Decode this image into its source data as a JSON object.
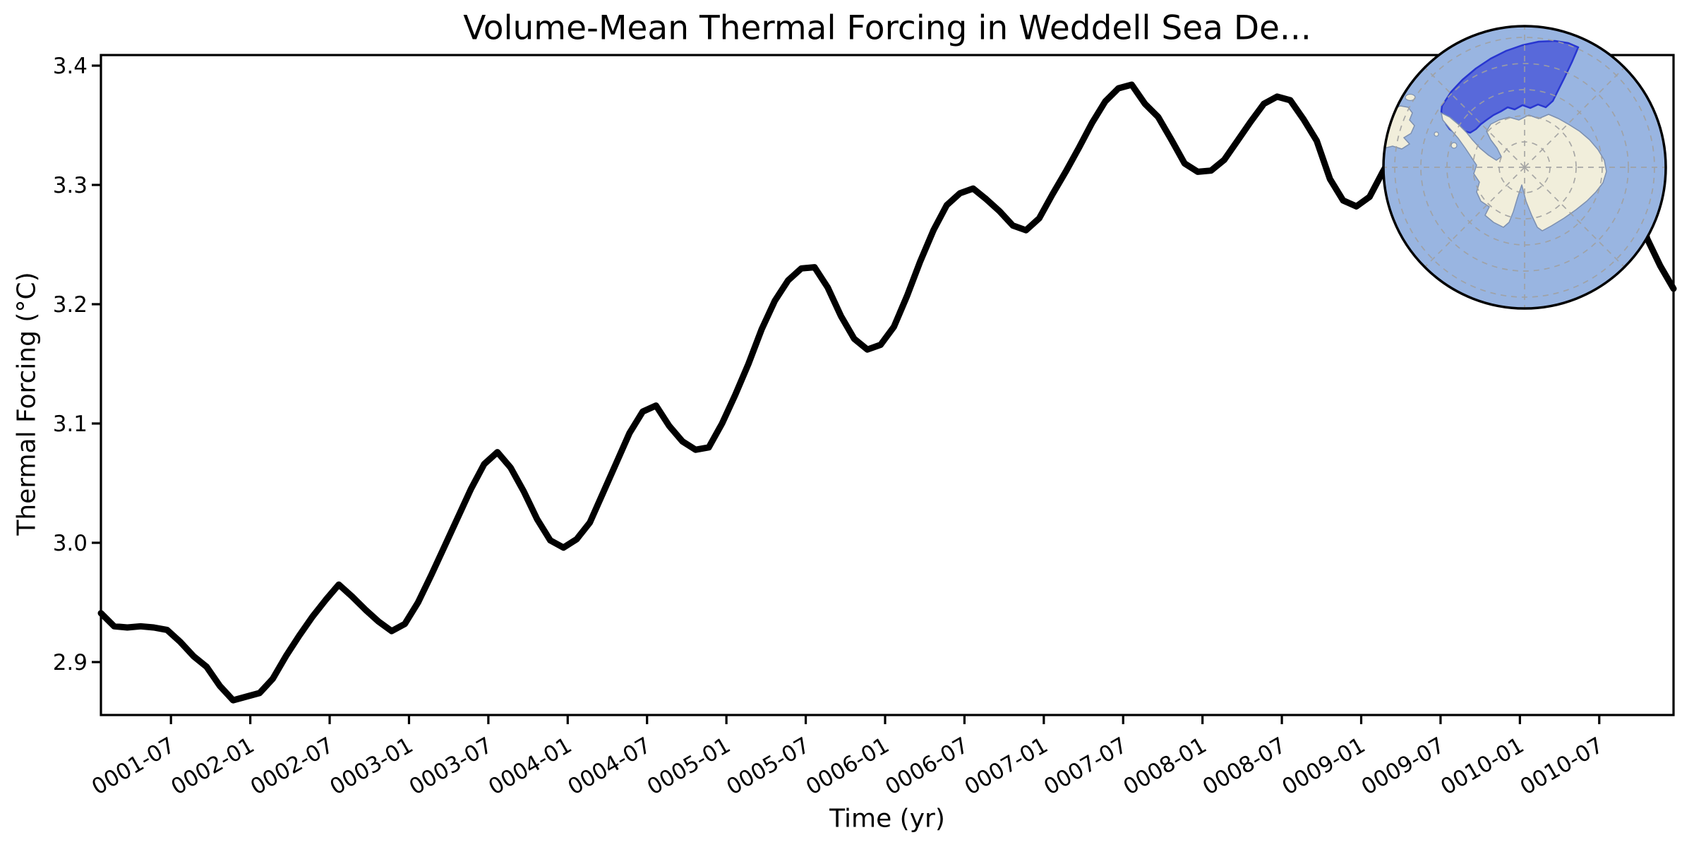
{
  "figure": {
    "background_color": "#ffffff",
    "text_color": "#000000"
  },
  "chart_data": {
    "type": "line",
    "title": "Volume-Mean Thermal Forcing in Weddell Sea De...",
    "xlabel": "Time (yr)",
    "ylabel": "Thermal Forcing (°C)",
    "x_start": "0001-01",
    "x_end": "0010-12",
    "frequency": "monthly",
    "grid": false,
    "legend": "none",
    "line_color": "#000000",
    "ylim": [
      2.856,
      3.409
    ],
    "y_tick_labels": [
      "2.9",
      "3.0",
      "3.1",
      "3.2",
      "3.3",
      "3.4"
    ],
    "y_tick_values": [
      2.9,
      3.0,
      3.1,
      3.2,
      3.3,
      3.4
    ],
    "x_tick_labels": [
      "0001-07",
      "0002-01",
      "0002-07",
      "0003-01",
      "0003-07",
      "0004-01",
      "0004-07",
      "0005-01",
      "0005-07",
      "0006-01",
      "0006-07",
      "0007-01",
      "0007-07",
      "0008-01",
      "0008-07",
      "0009-01",
      "0009-07",
      "0010-01",
      "0010-07"
    ],
    "series": [
      {
        "name": "volume-mean thermal forcing",
        "values": [
          2.941,
          2.93,
          2.929,
          2.93,
          2.929,
          2.927,
          2.917,
          2.905,
          2.896,
          2.88,
          2.868,
          2.871,
          2.874,
          2.886,
          2.905,
          2.922,
          2.938,
          2.952,
          2.965,
          2.955,
          2.944,
          2.934,
          2.926,
          2.932,
          2.95,
          2.973,
          2.997,
          3.021,
          3.045,
          3.066,
          3.076,
          3.063,
          3.043,
          3.02,
          3.002,
          2.996,
          3.003,
          3.017,
          3.042,
          3.067,
          3.092,
          3.11,
          3.115,
          3.098,
          3.085,
          3.078,
          3.08,
          3.1,
          3.124,
          3.15,
          3.179,
          3.203,
          3.22,
          3.23,
          3.231,
          3.214,
          3.19,
          3.171,
          3.162,
          3.166,
          3.181,
          3.207,
          3.236,
          3.262,
          3.283,
          3.293,
          3.297,
          3.288,
          3.278,
          3.266,
          3.262,
          3.272,
          3.292,
          3.311,
          3.331,
          3.352,
          3.37,
          3.381,
          3.384,
          3.368,
          3.357,
          3.338,
          3.318,
          3.311,
          3.312,
          3.321,
          3.337,
          3.353,
          3.368,
          3.374,
          3.371,
          3.355,
          3.337,
          3.305,
          3.287,
          3.282,
          3.29,
          3.311,
          3.33,
          3.345,
          3.356,
          3.362,
          3.364,
          3.355,
          3.34,
          3.32,
          3.305,
          3.298,
          3.3,
          3.31,
          3.322,
          3.332,
          3.338,
          3.34,
          3.336,
          3.322,
          3.3,
          3.255,
          3.232,
          3.213
        ]
      }
    ]
  },
  "inset_map": {
    "projection": "south-polar-stereographic",
    "highlighted_region": "Weddell Sea Deep",
    "ocean_color": "#99b5e1",
    "land_color": "#f1eedb",
    "coast_color": "#7d90b0",
    "region_fill_color": "#4e5fd8",
    "region_edge_color": "#2836d0",
    "graticule_color": "#a0a0a0",
    "outline_color": "#000000"
  }
}
